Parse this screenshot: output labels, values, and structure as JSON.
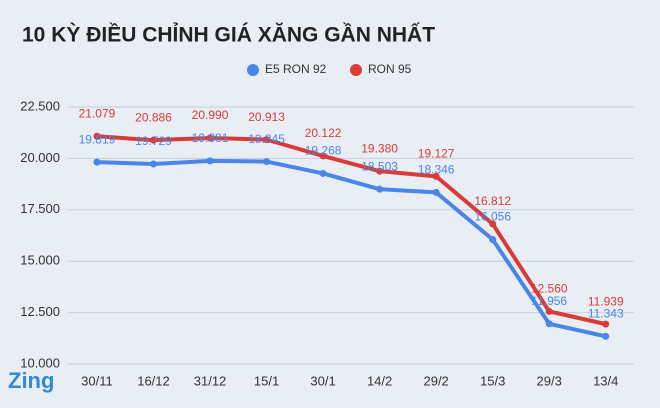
{
  "chart_data": {
    "type": "line",
    "title": "10 KỲ ĐIỀU CHỈNH GIÁ XĂNG GẦN NHẤT",
    "logo": "Zing",
    "categories": [
      "30/11",
      "16/12",
      "31/12",
      "15/1",
      "30/1",
      "14/2",
      "29/2",
      "15/3",
      "29/3",
      "13/4"
    ],
    "series": [
      {
        "name": "E5 RON 92",
        "color": "#4a86e8",
        "values": [
          19819,
          19729,
          19881,
          19845,
          19268,
          18503,
          18346,
          16056,
          11956,
          11343
        ],
        "value_labels": [
          "19.819",
          "19.729",
          "19.881",
          "19.845",
          "19.268",
          "18.503",
          "18.346",
          "16.056",
          "11.956",
          "11.343"
        ]
      },
      {
        "name": "RON 95",
        "color": "#d93b37",
        "values": [
          21079,
          20886,
          20990,
          20913,
          20122,
          19380,
          19127,
          16812,
          12560,
          11939
        ],
        "value_labels": [
          "21.079",
          "20.886",
          "20.990",
          "20.913",
          "20.122",
          "19.380",
          "19.127",
          "16.812",
          "12.560",
          "11.939"
        ]
      }
    ],
    "ylim": [
      10000,
      22500
    ],
    "yticks": [
      {
        "value": 10000,
        "label": "10.000"
      },
      {
        "value": 12500,
        "label": "12.500"
      },
      {
        "value": 15000,
        "label": "15.000"
      },
      {
        "value": 17500,
        "label": "17.500"
      },
      {
        "value": 20000,
        "label": "20.000"
      },
      {
        "value": 22500,
        "label": "22.500"
      }
    ],
    "grid": true
  }
}
